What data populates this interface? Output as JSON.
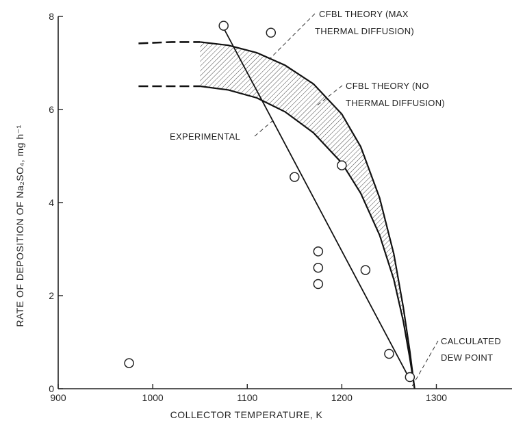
{
  "chart_data": {
    "type": "line",
    "title": "",
    "xlabel": "COLLECTOR TEMPERATURE, K",
    "ylabel": "RATE OF DEPOSITION OF Na₂SO₄, mg h⁻¹",
    "xlim": [
      900,
      1380
    ],
    "ylim": [
      0,
      8
    ],
    "x_ticks": [
      900,
      1000,
      1100,
      1200,
      1300
    ],
    "y_ticks": [
      0,
      2,
      4,
      6,
      8
    ],
    "grid": false,
    "experimental_points": [
      {
        "x": 975,
        "y": 0.55
      },
      {
        "x": 1075,
        "y": 7.8
      },
      {
        "x": 1125,
        "y": 7.65
      },
      {
        "x": 1150,
        "y": 4.55
      },
      {
        "x": 1175,
        "y": 2.95
      },
      {
        "x": 1175,
        "y": 2.6
      },
      {
        "x": 1175,
        "y": 2.25
      },
      {
        "x": 1200,
        "y": 4.8
      },
      {
        "x": 1225,
        "y": 2.55
      },
      {
        "x": 1250,
        "y": 0.75
      },
      {
        "x": 1272,
        "y": 0.25
      }
    ],
    "series": [
      {
        "name": "CFBL THEORY (MAX THERMAL DIFFUSION)",
        "style": "solid",
        "x": [
          1050,
          1080,
          1110,
          1140,
          1170,
          1200,
          1220,
          1240,
          1255,
          1265,
          1272,
          1277
        ],
        "values": [
          7.45,
          7.38,
          7.22,
          6.95,
          6.55,
          5.9,
          5.2,
          4.1,
          2.9,
          1.75,
          0.8,
          0.0
        ]
      },
      {
        "name": "CFBL THEORY (MAX THERMAL DIFFUSION) extrapolated",
        "style": "dashed",
        "x": [
          985,
          1020,
          1050
        ],
        "values": [
          7.42,
          7.45,
          7.45
        ]
      },
      {
        "name": "CFBL THEORY (NO THERMAL DIFFUSION)",
        "style": "solid",
        "x": [
          1050,
          1080,
          1110,
          1140,
          1170,
          1200,
          1220,
          1240,
          1255,
          1265,
          1272,
          1277
        ],
        "values": [
          6.5,
          6.42,
          6.25,
          5.95,
          5.5,
          4.85,
          4.2,
          3.3,
          2.35,
          1.45,
          0.65,
          0.0
        ]
      },
      {
        "name": "CFBL THEORY (NO THERMAL DIFFUSION) extrapolated",
        "style": "dashed",
        "x": [
          985,
          1020,
          1050
        ],
        "values": [
          6.5,
          6.5,
          6.5
        ]
      },
      {
        "name": "EXPERIMENTAL",
        "style": "solid",
        "x": [
          1075,
          1272
        ],
        "values": [
          7.75,
          0.2
        ]
      }
    ],
    "annotations": [
      {
        "id": "max",
        "lines": [
          "CFBL THEORY (MAX",
          "THERMAL DIFFUSION)"
        ]
      },
      {
        "id": "no",
        "lines": [
          "CFBL THEORY (NO",
          "THERMAL DIFFUSION)"
        ]
      },
      {
        "id": "exp",
        "lines": [
          "EXPERIMENTAL"
        ]
      },
      {
        "id": "dew",
        "lines": [
          "CALCULATED",
          "DEW POINT"
        ]
      }
    ],
    "tick_labels_x": [
      "900",
      "1000",
      "1100",
      "1200",
      "1300"
    ],
    "tick_labels_y": [
      "0",
      "2",
      "4",
      "6",
      "8"
    ]
  }
}
